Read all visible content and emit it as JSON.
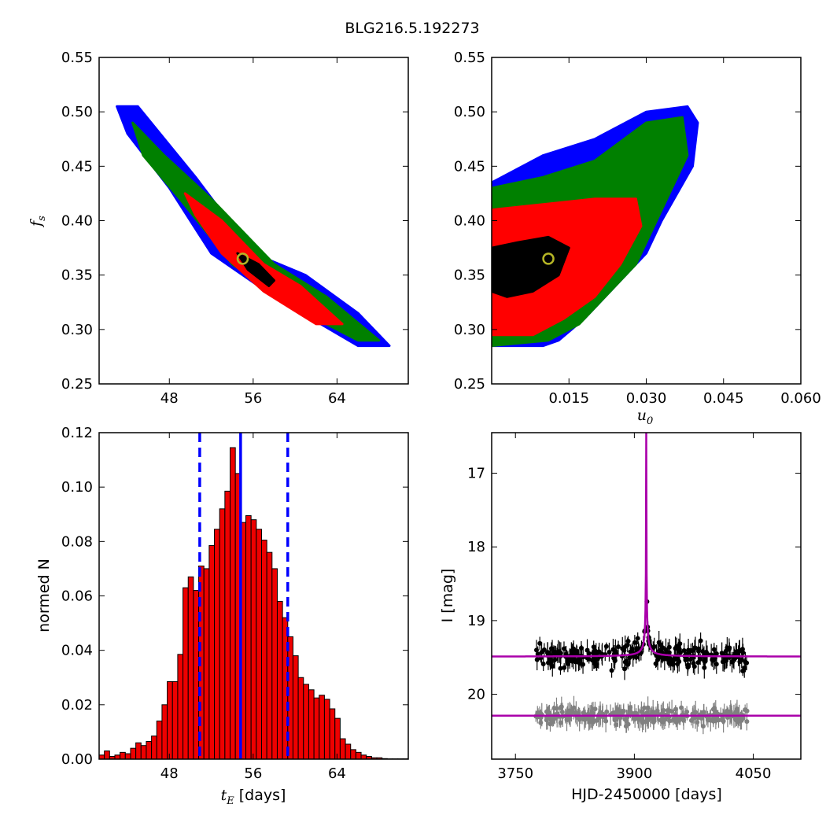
{
  "figure_title": "BLG216.5.192273",
  "colors": {
    "contour_3sigma": "#0000ff",
    "contour_2sigma": "#008000",
    "contour_1sigma": "#ff0000",
    "best_region": "#000000",
    "best_fit_marker": "#b5b525",
    "histogram_bar": "#ee0000",
    "median_line": "#0000ff",
    "model_curve": "#aa00aa",
    "data_points": "#000000",
    "residual_points": "#808080"
  },
  "chart_data": [
    {
      "id": "tE_vs_fs",
      "type": "heatmap",
      "xlabel": "",
      "ylabel_symbol": "f",
      "ylabel_sub": "s",
      "xlim": [
        41.3,
        70.8
      ],
      "ylim": [
        0.25,
        0.55
      ],
      "x_ticks": [
        "48",
        "56",
        "64"
      ],
      "x_tick_values": [
        48,
        56,
        64
      ],
      "y_ticks": [
        "0.25",
        "0.30",
        "0.35",
        "0.40",
        "0.45",
        "0.50",
        "0.55"
      ],
      "y_tick_values": [
        0.25,
        0.3,
        0.35,
        0.4,
        0.45,
        0.5,
        0.55
      ],
      "regions": {
        "outer_3sigma": [
          [
            43.0,
            0.505
          ],
          [
            45.0,
            0.505
          ],
          [
            50.5,
            0.44
          ],
          [
            56.0,
            0.37
          ],
          [
            61.0,
            0.35
          ],
          [
            66.0,
            0.315
          ],
          [
            69.0,
            0.285
          ],
          [
            66.0,
            0.285
          ],
          [
            58.0,
            0.33
          ],
          [
            52.0,
            0.37
          ],
          [
            48.0,
            0.43
          ],
          [
            44.0,
            0.48
          ]
        ],
        "mid_2sigma": [
          [
            44.5,
            0.49
          ],
          [
            47.5,
            0.46
          ],
          [
            52.0,
            0.42
          ],
          [
            58.0,
            0.36
          ],
          [
            63.0,
            0.33
          ],
          [
            68.0,
            0.29
          ],
          [
            66.0,
            0.29
          ],
          [
            60.0,
            0.32
          ],
          [
            54.0,
            0.36
          ],
          [
            49.0,
            0.42
          ],
          [
            45.5,
            0.46
          ]
        ],
        "inner_1sigma": [
          [
            49.5,
            0.425
          ],
          [
            53.0,
            0.4
          ],
          [
            57.0,
            0.36
          ],
          [
            60.5,
            0.34
          ],
          [
            64.5,
            0.305
          ],
          [
            62.0,
            0.305
          ],
          [
            57.0,
            0.335
          ],
          [
            53.0,
            0.37
          ],
          [
            50.5,
            0.405
          ]
        ],
        "best_region": [
          [
            54.5,
            0.37
          ],
          [
            56.5,
            0.36
          ],
          [
            58.0,
            0.345
          ],
          [
            57.5,
            0.34
          ],
          [
            55.5,
            0.355
          ]
        ]
      },
      "best_fit": {
        "x": 55.0,
        "y": 0.365
      }
    },
    {
      "id": "u0_vs_fs",
      "type": "heatmap",
      "xlabel_symbol": "u",
      "xlabel_sub": "0",
      "ylabel": "",
      "xlim": [
        0.0,
        0.06
      ],
      "ylim": [
        0.25,
        0.55
      ],
      "x_ticks": [
        "0.015",
        "0.030",
        "0.045",
        "0.060"
      ],
      "x_tick_values": [
        0.015,
        0.03,
        0.045,
        0.06
      ],
      "y_ticks": [
        "0.25",
        "0.30",
        "0.35",
        "0.40",
        "0.45",
        "0.50",
        "0.55"
      ],
      "y_tick_values": [
        0.25,
        0.3,
        0.35,
        0.4,
        0.45,
        0.5,
        0.55
      ],
      "regions": {
        "outer_3sigma": [
          [
            0.0,
            0.285
          ],
          [
            0.0,
            0.435
          ],
          [
            0.01,
            0.46
          ],
          [
            0.02,
            0.475
          ],
          [
            0.03,
            0.5
          ],
          [
            0.038,
            0.505
          ],
          [
            0.04,
            0.49
          ],
          [
            0.039,
            0.45
          ],
          [
            0.033,
            0.4
          ],
          [
            0.03,
            0.37
          ],
          [
            0.024,
            0.34
          ],
          [
            0.018,
            0.31
          ],
          [
            0.013,
            0.29
          ],
          [
            0.01,
            0.285
          ]
        ],
        "mid_2sigma": [
          [
            0.0,
            0.285
          ],
          [
            0.0,
            0.43
          ],
          [
            0.01,
            0.44
          ],
          [
            0.02,
            0.455
          ],
          [
            0.03,
            0.49
          ],
          [
            0.037,
            0.495
          ],
          [
            0.038,
            0.46
          ],
          [
            0.033,
            0.41
          ],
          [
            0.028,
            0.36
          ],
          [
            0.022,
            0.33
          ],
          [
            0.017,
            0.305
          ],
          [
            0.011,
            0.29
          ]
        ],
        "inner_1sigma": [
          [
            0.0,
            0.295
          ],
          [
            0.0,
            0.41
          ],
          [
            0.01,
            0.415
          ],
          [
            0.02,
            0.42
          ],
          [
            0.028,
            0.42
          ],
          [
            0.029,
            0.395
          ],
          [
            0.025,
            0.36
          ],
          [
            0.02,
            0.33
          ],
          [
            0.014,
            0.31
          ],
          [
            0.008,
            0.295
          ]
        ],
        "best_region": [
          [
            0.0,
            0.335
          ],
          [
            0.0,
            0.375
          ],
          [
            0.005,
            0.38
          ],
          [
            0.011,
            0.385
          ],
          [
            0.015,
            0.375
          ],
          [
            0.013,
            0.35
          ],
          [
            0.008,
            0.335
          ],
          [
            0.003,
            0.33
          ]
        ]
      },
      "best_fit": {
        "x": 0.011,
        "y": 0.365
      }
    },
    {
      "id": "tE_histogram",
      "type": "bar",
      "xlabel_symbol": "t",
      "xlabel_sub": "E",
      "xlabel_text": "[days]",
      "ylabel": "normed N",
      "xlim": [
        41.3,
        70.8
      ],
      "ylim": [
        0.0,
        0.12
      ],
      "x_ticks": [
        "48",
        "56",
        "64"
      ],
      "x_tick_values": [
        48,
        56,
        64
      ],
      "y_ticks": [
        "0.00",
        "0.02",
        "0.04",
        "0.06",
        "0.08",
        "0.10",
        "0.12"
      ],
      "y_tick_values": [
        0.0,
        0.02,
        0.04,
        0.06,
        0.08,
        0.1,
        0.12
      ],
      "bin_start": 41.3,
      "bin_width": 0.5,
      "values": [
        0.0015,
        0.003,
        0.001,
        0.0015,
        0.0025,
        0.002,
        0.004,
        0.006,
        0.005,
        0.0065,
        0.0085,
        0.014,
        0.02,
        0.0285,
        0.0285,
        0.0385,
        0.063,
        0.067,
        0.062,
        0.071,
        0.07,
        0.0785,
        0.0845,
        0.092,
        0.0985,
        0.1145,
        0.105,
        0.087,
        0.0895,
        0.088,
        0.0845,
        0.0805,
        0.076,
        0.07,
        0.058,
        0.052,
        0.045,
        0.038,
        0.03,
        0.0275,
        0.0255,
        0.0225,
        0.0235,
        0.022,
        0.0185,
        0.015,
        0.0075,
        0.0055,
        0.0035,
        0.0025,
        0.0015,
        0.001,
        0.0005,
        0.0005,
        0.0002,
        0.0001,
        0.0001,
        0.0001,
        0.0001
      ],
      "median": 54.8,
      "lower_bound": 50.9,
      "upper_bound": 59.3
    },
    {
      "id": "light_curve",
      "type": "scatter",
      "xlabel": "HJD-2450000 [days]",
      "ylabel": "I [mag]",
      "xlim": [
        3720,
        4110
      ],
      "ylim": [
        20.88,
        16.45
      ],
      "inverted_y": true,
      "x_ticks": [
        "3750",
        "3900",
        "4050"
      ],
      "x_tick_values": [
        3750,
        3900,
        4050
      ],
      "y_ticks": [
        "17",
        "18",
        "19",
        "20"
      ],
      "y_tick_values": [
        17,
        18,
        19,
        20
      ],
      "model": {
        "t0": 3915.0,
        "baseline": 19.49,
        "peak": 16.45,
        "tau": 9.0
      },
      "residual_baseline": 20.29,
      "data_range": [
        3775,
        4043
      ],
      "data_scatter": 0.12,
      "residual_scatter": 0.07
    }
  ]
}
